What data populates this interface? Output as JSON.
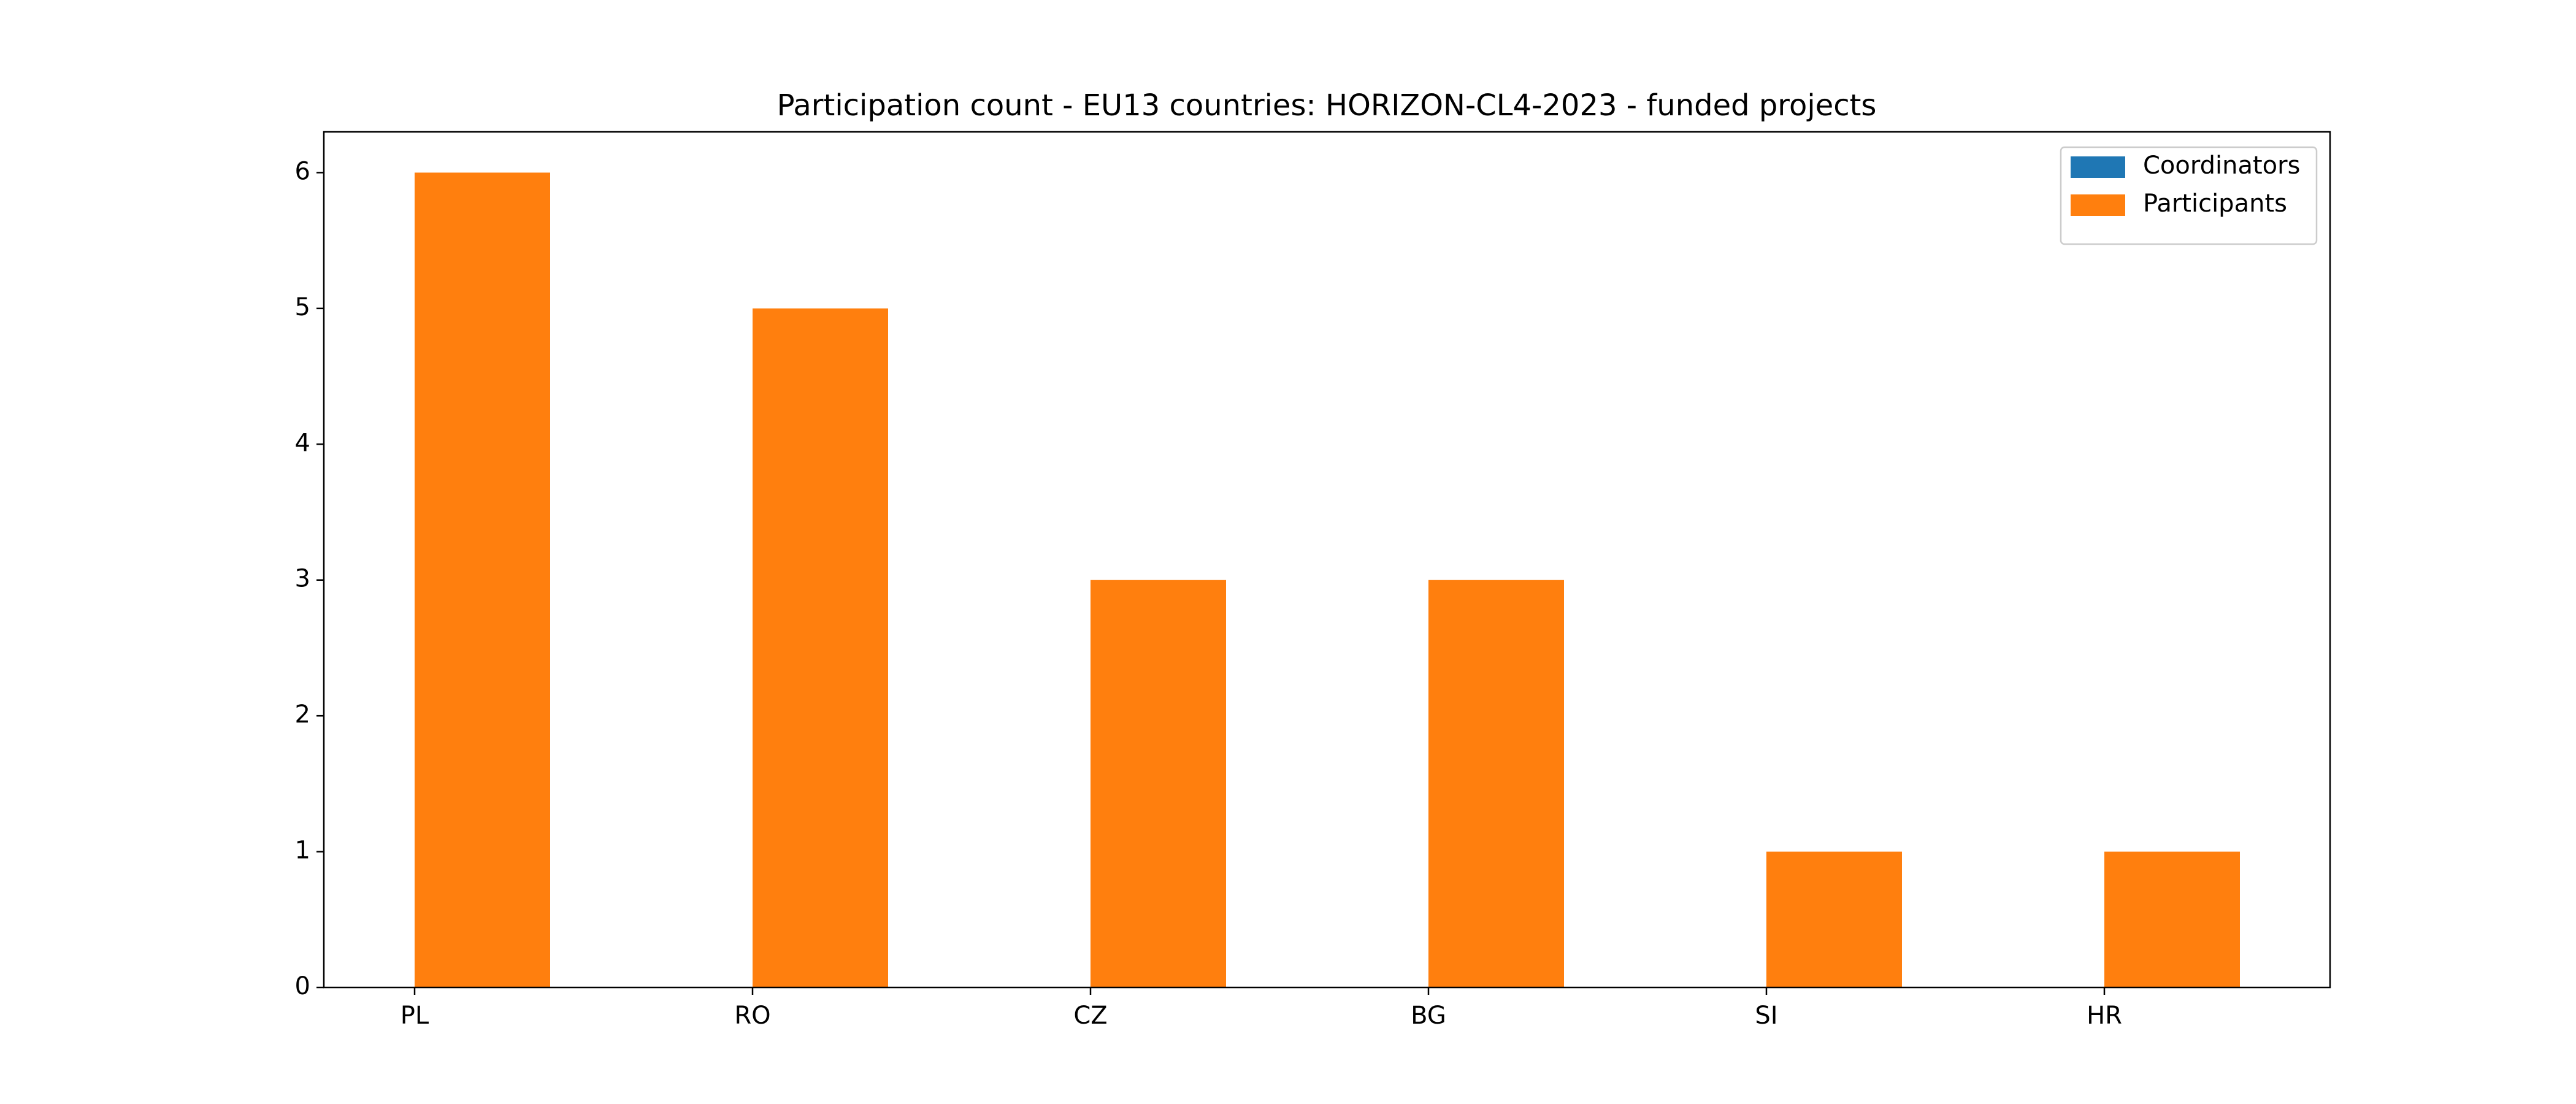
{
  "chart_data": {
    "type": "bar",
    "title": "Participation count - EU13 countries: HORIZON-CL4-2023 - funded projects",
    "categories": [
      "PL",
      "RO",
      "CZ",
      "BG",
      "SI",
      "HR"
    ],
    "series": [
      {
        "name": "Coordinators",
        "color": "#1f77b4",
        "values": [
          0,
          0,
          0,
          0,
          0,
          0
        ]
      },
      {
        "name": "Participants",
        "color": "#ff7f0e",
        "values": [
          6,
          5,
          3,
          3,
          1,
          1
        ]
      }
    ],
    "ylim": [
      0,
      6.3
    ],
    "yticks": [
      0,
      1,
      2,
      3,
      4,
      5,
      6
    ],
    "legend": "upper right"
  }
}
